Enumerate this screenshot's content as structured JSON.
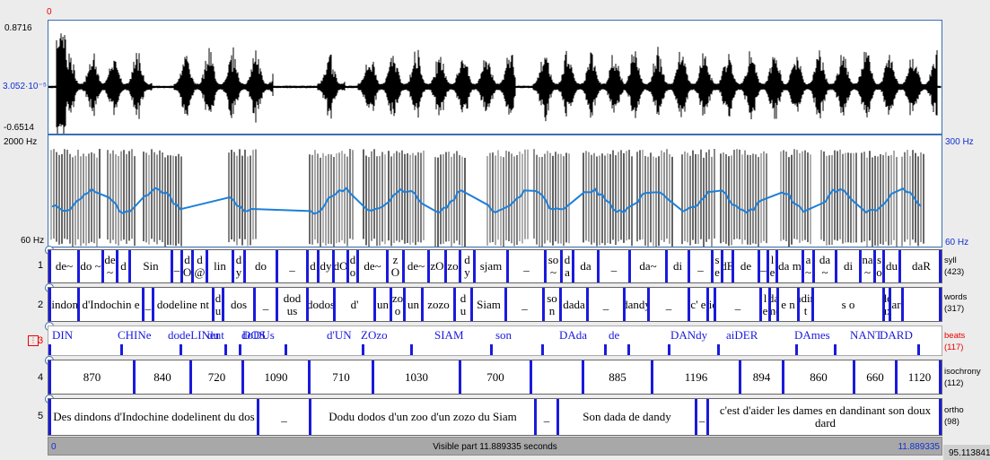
{
  "axis": {
    "top_red_zero": "0",
    "wave_max": "0.8716",
    "wave_mid": "3.052·10⁻⁵",
    "wave_min": "-0.6514",
    "spec_top_hz": "2000 Hz",
    "spec_bottom_hz": "60 Hz",
    "pitch_top_hz": "300 Hz",
    "pitch_bottom_hz": "60 Hz"
  },
  "tiers": {
    "syll": {
      "num": "1",
      "name": "syll",
      "count": "(423)",
      "cells": [
        "de~",
        "do ~",
        "de ~",
        "d",
        "Sin",
        "_",
        "d O",
        "d @",
        "lin",
        "d y",
        "do",
        "_",
        "d",
        "dy",
        "dO",
        "d o",
        "de~",
        "z O",
        "de~",
        "zO",
        "zo",
        "d y",
        "sjam",
        "_",
        "so ~",
        "d a",
        "da",
        "_",
        "da~",
        "di",
        "_",
        "s e",
        "dE",
        "de",
        "_",
        "l e",
        "da m",
        "a ~",
        "da ~",
        "di",
        "na ~",
        "s o",
        "du",
        "daR"
      ]
    },
    "words": {
      "num": "2",
      "name": "words",
      "count": "(317)",
      "cells": [
        "dindons",
        "d'Indochin e",
        "_",
        "dodeline nt",
        "d u",
        "dos",
        "_",
        "dod us",
        "dodos",
        "d'",
        "un",
        "zo o",
        "un",
        "zozo",
        "d u",
        "Siam",
        "_",
        "so n",
        "dada",
        "_",
        "dandy",
        "_",
        "c' e",
        "d'aider",
        "_",
        "l e",
        "da me",
        "e n",
        "dandinan t",
        "s o",
        "do ux",
        "dard"
      ]
    },
    "beats": {
      "num": "3",
      "name": "beats",
      "count": "(117)",
      "items": [
        "DIN",
        "CHINe",
        "dodeLINent",
        "du",
        "DOS",
        "doDUs",
        "d'UN",
        "ZOzo",
        "SIAM",
        "son",
        "DAda",
        "de",
        "DANdy",
        "aiDER",
        "DAmes",
        "NANT",
        "DARD"
      ]
    },
    "isochrony": {
      "num": "4",
      "name": "isochrony",
      "count": "(112)",
      "cells": [
        "870",
        "840",
        "720",
        "1090",
        "710",
        "1030",
        "700",
        "",
        "885",
        "1196",
        "894",
        "860",
        "660",
        "1120"
      ]
    },
    "ortho": {
      "num": "5",
      "name": "ortho",
      "count": "(98)",
      "cells": [
        "Des dindons d'Indochine dodelinent du dos",
        "_",
        "Dodu dodos d'un zoo d'un zozo du Siam",
        "_",
        "Son dada de dandy",
        "_",
        "c'est d'aider les dames en dandinant son doux dard"
      ]
    }
  },
  "footer": {
    "left_time": "0",
    "visible_text": "Visible part 11.889335 seconds",
    "right_time": "11.889335",
    "total_time": "95.113841"
  },
  "colors": {
    "boundary": "#1a1adc",
    "pitch": "#1e7fd8",
    "accent_red": "#e00000"
  }
}
